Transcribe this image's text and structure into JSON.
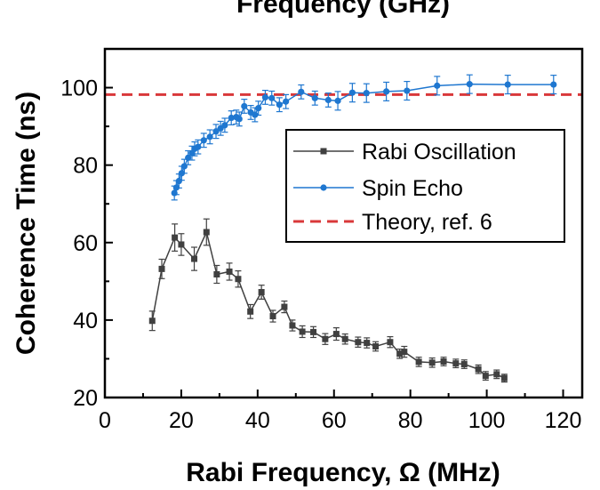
{
  "chart_data": {
    "type": "line",
    "title": "Frequency (GHz)",
    "xlabel": "Rabi Frequency, Ω (MHz)",
    "ylabel": "Coherence Time (ns)",
    "xlim": [
      0,
      125
    ],
    "ylim": [
      20,
      110
    ],
    "xticks": [
      0,
      20,
      40,
      60,
      80,
      100,
      120
    ],
    "yticks": [
      20,
      40,
      60,
      80,
      100
    ],
    "xtick_labels": [
      "0",
      "20",
      "40",
      "60",
      "80",
      "100",
      "120"
    ],
    "ytick_labels": [
      "20",
      "40",
      "60",
      "80",
      "100"
    ],
    "legend_position": "upper-right",
    "series": [
      {
        "name": "Rabi Oscillation",
        "color": "#404040",
        "marker": "square",
        "x": [
          12.4,
          14.9,
          18.3,
          20.0,
          23.4,
          26.6,
          29.3,
          32.6,
          34.9,
          38.1,
          41.0,
          44.0,
          47.0,
          49.1,
          51.7,
          54.6,
          57.7,
          60.6,
          62.9,
          66.3,
          68.6,
          70.9,
          74.7,
          77.2,
          78.4,
          82.2,
          85.7,
          88.7,
          91.9,
          94.1,
          97.8,
          99.7,
          102.6,
          104.6
        ],
        "y": [
          39.8,
          53.2,
          61.3,
          59.5,
          55.8,
          62.7,
          51.8,
          52.5,
          50.6,
          42.2,
          47.2,
          41.0,
          43.4,
          38.6,
          37.0,
          36.9,
          35.1,
          36.4,
          35.1,
          34.3,
          34.1,
          33.2,
          34.3,
          31.3,
          31.8,
          29.2,
          29.0,
          29.3,
          28.8,
          28.6,
          27.3,
          25.6,
          26.0,
          25.0
        ],
        "err": [
          2.5,
          2.5,
          3.5,
          2.8,
          3.0,
          3.4,
          2.3,
          2.2,
          2.1,
          1.8,
          1.8,
          1.5,
          1.5,
          1.4,
          1.5,
          1.4,
          1.4,
          1.6,
          1.3,
          1.3,
          1.3,
          1.2,
          1.4,
          1.2,
          1.4,
          1.2,
          1.2,
          1.1,
          1.1,
          1.1,
          1.1,
          1.1,
          1.1,
          1.0
        ]
      },
      {
        "name": "Spin Echo",
        "color": "#1f77d0",
        "marker": "circle",
        "x": [
          18.2,
          18.7,
          19.4,
          20.1,
          20.8,
          21.8,
          22.8,
          23.5,
          24.4,
          25.9,
          27.5,
          29.1,
          30.3,
          31.4,
          33.1,
          34.4,
          35.2,
          36.5,
          38.2,
          39.3,
          40.2,
          42.0,
          43.7,
          45.7,
          47.4,
          51.4,
          55.0,
          58.5,
          61.0,
          64.8,
          68.5,
          73.7,
          79.1,
          87.0,
          95.5,
          105.5,
          117.5
        ],
        "y": [
          72.8,
          74.2,
          75.9,
          77.9,
          79.7,
          81.9,
          83.1,
          84.2,
          84.7,
          86.4,
          87.3,
          88.7,
          89.5,
          90.3,
          92.2,
          92.4,
          91.9,
          95.2,
          93.6,
          93.0,
          94.7,
          97.5,
          97.3,
          95.6,
          96.4,
          98.9,
          97.3,
          96.8,
          96.6,
          98.7,
          98.6,
          99.0,
          99.2,
          100.5,
          100.9,
          100.8,
          100.8
        ]
      },
      {
        "name": "Theory, ref. 6",
        "color": "#d9383a",
        "style": "dashed",
        "y": 98.2
      }
    ]
  }
}
